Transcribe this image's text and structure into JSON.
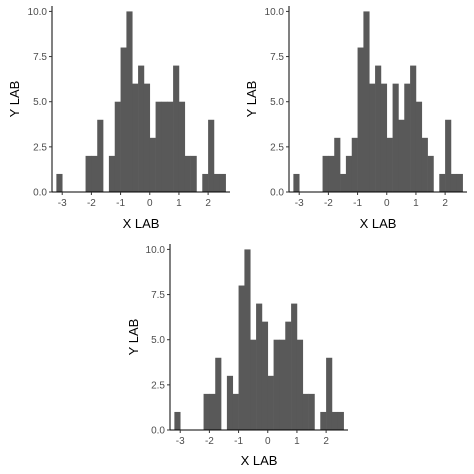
{
  "colors": {
    "bar_fill": "#595959",
    "axis": "#000000",
    "tick_text": "#4d4d4d",
    "background": "#ffffff"
  },
  "chart_data": [
    {
      "type": "bar",
      "panel": "top-left",
      "xlabel": "X LAB",
      "ylabel": "Y LAB",
      "xticks": [
        -3,
        -2,
        -1,
        0,
        1,
        2
      ],
      "yticks": [
        0.0,
        2.5,
        5.0,
        7.5,
        10.0
      ],
      "ytick_labels": [
        "0.0",
        "2.5",
        "5.0",
        "7.5",
        "10.0"
      ],
      "xlim": [
        -3.35,
        2.75
      ],
      "ylim": [
        0,
        10.3
      ],
      "grid": false,
      "bin_width": 0.2,
      "bins": [
        [
          -3.2,
          -3.0,
          1
        ],
        [
          -2.2,
          -2.0,
          2
        ],
        [
          -2.0,
          -1.8,
          2
        ],
        [
          -1.8,
          -1.6,
          4
        ],
        [
          -1.4,
          -1.2,
          2
        ],
        [
          -1.2,
          -1.0,
          5
        ],
        [
          -1.0,
          -0.8,
          8
        ],
        [
          -0.8,
          -0.6,
          10
        ],
        [
          -0.6,
          -0.4,
          6
        ],
        [
          -0.4,
          -0.2,
          7
        ],
        [
          -0.2,
          0.0,
          6
        ],
        [
          0.0,
          0.2,
          3
        ],
        [
          0.2,
          0.4,
          5
        ],
        [
          0.4,
          0.6,
          5
        ],
        [
          0.6,
          0.8,
          5
        ],
        [
          0.8,
          1.0,
          7
        ],
        [
          1.0,
          1.2,
          5
        ],
        [
          1.2,
          1.4,
          2
        ],
        [
          1.4,
          1.6,
          2
        ],
        [
          1.8,
          2.0,
          1
        ],
        [
          2.0,
          2.2,
          4
        ],
        [
          2.2,
          2.4,
          1
        ],
        [
          2.4,
          2.6,
          1
        ]
      ]
    },
    {
      "type": "bar",
      "panel": "top-right",
      "xlabel": "X LAB",
      "ylabel": "Y LAB",
      "xticks": [
        -3,
        -2,
        -1,
        0,
        1,
        2
      ],
      "yticks": [
        0.0,
        2.5,
        5.0,
        7.5,
        10.0
      ],
      "ytick_labels": [
        "0.0",
        "2.5",
        "5.0",
        "7.5",
        "10.0"
      ],
      "xlim": [
        -3.35,
        2.75
      ],
      "ylim": [
        0,
        10.3
      ],
      "grid": false,
      "bin_width": 0.2,
      "bins": [
        [
          -3.2,
          -3.0,
          1
        ],
        [
          -2.2,
          -2.0,
          2
        ],
        [
          -2.0,
          -1.8,
          2
        ],
        [
          -1.8,
          -1.6,
          3
        ],
        [
          -1.6,
          -1.4,
          1
        ],
        [
          -1.4,
          -1.2,
          2
        ],
        [
          -1.2,
          -1.0,
          3
        ],
        [
          -1.0,
          -0.8,
          8
        ],
        [
          -0.8,
          -0.6,
          10
        ],
        [
          -0.6,
          -0.4,
          6
        ],
        [
          -0.4,
          -0.2,
          7
        ],
        [
          -0.2,
          0.0,
          6
        ],
        [
          0.0,
          0.2,
          3
        ],
        [
          0.2,
          0.4,
          6
        ],
        [
          0.4,
          0.6,
          4
        ],
        [
          0.6,
          0.8,
          6
        ],
        [
          0.8,
          1.0,
          7
        ],
        [
          1.0,
          1.2,
          5
        ],
        [
          1.2,
          1.4,
          3
        ],
        [
          1.4,
          1.6,
          2
        ],
        [
          1.8,
          2.0,
          1
        ],
        [
          2.0,
          2.2,
          4
        ],
        [
          2.2,
          2.4,
          1
        ],
        [
          2.4,
          2.6,
          1
        ]
      ]
    },
    {
      "type": "bar",
      "panel": "bottom-center",
      "xlabel": "X LAB",
      "ylabel": "Y LAB",
      "xticks": [
        -3,
        -2,
        -1,
        0,
        1,
        2
      ],
      "yticks": [
        0.0,
        2.5,
        5.0,
        7.5,
        10.0
      ],
      "ytick_labels": [
        "0.0",
        "2.5",
        "5.0",
        "7.5",
        "10.0"
      ],
      "xlim": [
        -3.35,
        2.75
      ],
      "ylim": [
        0,
        10.3
      ],
      "grid": false,
      "bin_width": 0.2,
      "bins": [
        [
          -3.2,
          -3.0,
          1
        ],
        [
          -2.2,
          -2.0,
          2
        ],
        [
          -2.0,
          -1.8,
          2
        ],
        [
          -1.8,
          -1.6,
          4
        ],
        [
          -1.4,
          -1.2,
          3
        ],
        [
          -1.2,
          -1.0,
          2
        ],
        [
          -1.0,
          -0.8,
          8
        ],
        [
          -0.8,
          -0.6,
          10
        ],
        [
          -0.6,
          -0.4,
          5
        ],
        [
          -0.4,
          -0.2,
          7
        ],
        [
          -0.2,
          0.0,
          6
        ],
        [
          0.0,
          0.2,
          3
        ],
        [
          0.2,
          0.4,
          5
        ],
        [
          0.4,
          0.6,
          5
        ],
        [
          0.6,
          0.8,
          6
        ],
        [
          0.8,
          1.0,
          7
        ],
        [
          1.0,
          1.2,
          5
        ],
        [
          1.2,
          1.4,
          2
        ],
        [
          1.4,
          1.6,
          2
        ],
        [
          1.8,
          2.0,
          1
        ],
        [
          2.0,
          2.2,
          4
        ],
        [
          2.2,
          2.4,
          1
        ],
        [
          2.4,
          2.6,
          1
        ]
      ]
    }
  ]
}
